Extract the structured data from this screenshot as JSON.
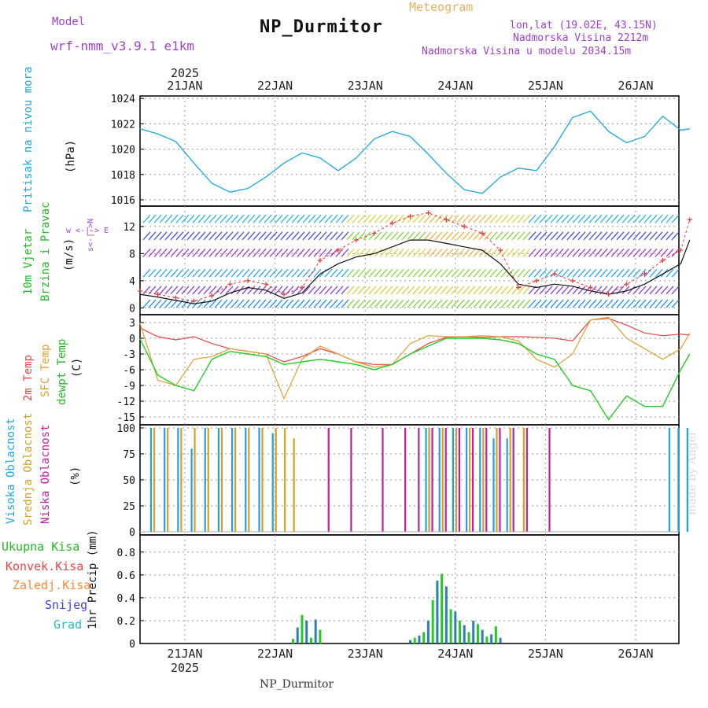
{
  "header": {
    "model_label": "Model",
    "model_value": "wrf-nmm_v3.9.1 e1km",
    "title": "NP_Durmitor",
    "product": "Meteogram",
    "coords": "lon,lat (19.02E, 43.15N)",
    "elevation": "Nadmorska Visina 2212m",
    "model_elevation": "Nadmorska Visina u modelu 2034.15m",
    "footer": "NP_Durmitor",
    "credit": "made by Angel"
  },
  "colors": {
    "pressure": "#1ca8e0",
    "temp2m": "#ee4444",
    "sfc_temp": "#e0a030",
    "dewpoint": "#22cc22",
    "cloud_high": "#20a0e8",
    "cloud_mid": "#d8a020",
    "cloud_low": "#c020a0",
    "precip_total": "#22cc22",
    "precip_conv": "#ee4444",
    "precip_frozen": "#ff8833",
    "precip_snow": "#4040ee",
    "precip_grad": "#20c0c0",
    "wind_speed": "#111111",
    "gust": "#ee3333"
  },
  "chart_data": [
    {
      "type": "line",
      "title": "Pritisak na nivou mora",
      "ylabel": "(hPa)",
      "xlabel": "",
      "ylim": [
        1015.5,
        1024.2
      ],
      "yticks": [
        "1016",
        "1018",
        "1020",
        "1022",
        "1024"
      ],
      "xticks": [
        "21JAN",
        "22JAN",
        "23JAN",
        "24JAN",
        "25JAN",
        "26JAN"
      ],
      "x_top_year": "2025",
      "grid": true,
      "x_days": [
        0,
        0.2,
        0.4,
        0.6,
        0.8,
        1.0,
        1.2,
        1.4,
        1.6,
        1.8,
        2.0,
        2.2,
        2.4,
        2.6,
        2.8,
        3.0,
        3.2,
        3.4,
        3.6,
        3.8,
        4.0,
        4.2,
        4.4,
        4.6,
        4.8,
        5.0,
        5.2,
        5.4,
        5.6,
        5.8,
        6.0,
        6.1
      ],
      "series": [
        {
          "values": [
            1021.6,
            1021.2,
            1020.6,
            1018.9,
            1017.3,
            1016.6,
            1016.9,
            1017.8,
            1018.9,
            1019.7,
            1019.3,
            1018.3,
            1019.3,
            1020.8,
            1021.4,
            1021.0,
            1019.6,
            1018.1,
            1016.8,
            1016.5,
            1017.8,
            1018.5,
            1018.3,
            1020.2,
            1022.5,
            1023.0,
            1021.4,
            1020.5,
            1021.0,
            1022.6,
            1021.5,
            1021.6
          ]
        }
      ]
    },
    {
      "type": "line",
      "title": "10m Vjetar Brzina i Pravac",
      "ylabel": "(m/s)",
      "xlabel": "",
      "ylim": [
        -1,
        15
      ],
      "yticks": [
        "0",
        "4",
        "8",
        "12"
      ],
      "xticks": [
        "21JAN",
        "22JAN",
        "23JAN",
        "24JAN",
        "25JAN",
        "26JAN"
      ],
      "grid": true,
      "legend_text": "w <-|-> E, s<-|->N",
      "x_days": [
        0,
        0.2,
        0.4,
        0.6,
        0.8,
        1.0,
        1.2,
        1.4,
        1.6,
        1.8,
        2.0,
        2.2,
        2.4,
        2.6,
        2.8,
        3.0,
        3.2,
        3.4,
        3.6,
        3.8,
        4.0,
        4.2,
        4.4,
        4.6,
        4.8,
        5.0,
        5.2,
        5.4,
        5.6,
        5.8,
        6.0,
        6.1
      ],
      "series": [
        {
          "name": "speed",
          "values": [
            2.0,
            1.6,
            1.1,
            0.6,
            1.0,
            2.2,
            3.0,
            2.6,
            1.4,
            2.2,
            5.0,
            6.5,
            7.5,
            8.0,
            9.0,
            10.0,
            10.0,
            9.5,
            9.0,
            8.5,
            6.5,
            3.5,
            3.0,
            3.5,
            3.2,
            2.5,
            2.0,
            2.5,
            3.5,
            5.0,
            6.5,
            10.0
          ]
        },
        {
          "name": "gust",
          "values": [
            2.5,
            2.0,
            1.5,
            1.0,
            1.8,
            3.5,
            4.0,
            3.5,
            2.0,
            3.0,
            7.0,
            8.5,
            10.0,
            11.0,
            12.5,
            13.5,
            14.0,
            13.0,
            12.0,
            11.0,
            8.5,
            3.0,
            4.0,
            5.0,
            4.0,
            3.0,
            2.0,
            3.5,
            5.0,
            7.0,
            8.5,
            13.0
          ]
        }
      ]
    },
    {
      "type": "line",
      "title": "2m Temp / SFC Temp / dewpt Temp",
      "ylabel": "(C)",
      "xlabel": "",
      "ylim": [
        -16.5,
        4.5
      ],
      "yticks": [
        "3",
        "0",
        "-3",
        "-6",
        "-9",
        "-12",
        "-15"
      ],
      "xticks": [
        "21JAN",
        "22JAN",
        "23JAN",
        "24JAN",
        "25JAN",
        "26JAN"
      ],
      "grid": true,
      "x_days": [
        0,
        0.2,
        0.4,
        0.6,
        0.8,
        1.0,
        1.2,
        1.4,
        1.6,
        1.8,
        2.0,
        2.2,
        2.4,
        2.6,
        2.8,
        3.0,
        3.2,
        3.4,
        3.6,
        3.8,
        4.0,
        4.2,
        4.4,
        4.6,
        4.8,
        5.0,
        5.2,
        5.4,
        5.6,
        5.8,
        6.0,
        6.1
      ],
      "series": [
        {
          "name": "2m Temp",
          "values": [
            2.0,
            0.3,
            -0.3,
            0.3,
            -1.0,
            -2.0,
            -2.5,
            -3.0,
            -4.5,
            -3.5,
            -2.0,
            -3.0,
            -4.5,
            -5.0,
            -5.0,
            -3.0,
            -1.0,
            0.2,
            0.3,
            0.2,
            0.3,
            0.3,
            0.2,
            0.0,
            -0.5,
            3.5,
            3.8,
            2.5,
            1.0,
            0.5,
            0.8,
            0.6
          ]
        },
        {
          "name": "SFC Temp",
          "values": [
            3.0,
            -8.0,
            -9.0,
            -4.0,
            -3.5,
            -2.0,
            -2.5,
            -3.0,
            -11.5,
            -4.0,
            -1.5,
            -3.0,
            -4.5,
            -5.5,
            -5.0,
            -1.0,
            0.5,
            0.3,
            0.3,
            0.5,
            0.3,
            -0.5,
            -4.0,
            -5.5,
            -3.0,
            3.5,
            4.0,
            0.0,
            -2.0,
            -4.0,
            -2.0,
            1.0
          ]
        },
        {
          "name": "dewpt Temp",
          "values": [
            0.0,
            -7.0,
            -9.0,
            -10.0,
            -4.0,
            -2.5,
            -3.0,
            -3.5,
            -5.0,
            -4.5,
            -4.0,
            -4.5,
            -5.0,
            -6.0,
            -5.0,
            -3.0,
            -1.5,
            0.0,
            0.0,
            0.0,
            -0.3,
            -1.0,
            -3.0,
            -4.0,
            -9.0,
            -10.0,
            -15.5,
            -11.0,
            -13.0,
            -13.0,
            -6.0,
            -3.0
          ]
        }
      ]
    },
    {
      "type": "bar",
      "title": "Visoka Oblacnost / Srednja Oblacnost / Niska Oblacnost",
      "ylabel": "(%)",
      "xlabel": "",
      "ylim": [
        -3,
        103
      ],
      "yticks": [
        "100",
        "75",
        "50",
        "25",
        "0"
      ],
      "xticks": [
        "21JAN",
        "22JAN",
        "23JAN",
        "24JAN",
        "25JAN",
        "26JAN"
      ],
      "grid": true,
      "x_days": [
        0.15,
        0.3,
        0.45,
        0.6,
        0.75,
        0.9,
        1.05,
        1.2,
        1.35,
        1.5,
        1.6,
        1.7,
        2.05,
        2.3,
        2.65,
        2.9,
        3.05,
        3.2,
        3.35,
        3.5,
        3.65,
        3.8,
        3.95,
        4.1,
        4.25,
        4.5,
        4.6,
        5.9,
        6.0,
        6.1
      ],
      "series": [
        {
          "name": "Visoka Oblacnost",
          "values": [
            100,
            100,
            100,
            80,
            100,
            100,
            100,
            100,
            100,
            95,
            0,
            0,
            0,
            0,
            0,
            0,
            0,
            100,
            100,
            100,
            100,
            100,
            90,
            90,
            0,
            0,
            0,
            100,
            100,
            100
          ]
        },
        {
          "name": "Srednja Oblacnost",
          "values": [
            100,
            100,
            100,
            100,
            100,
            100,
            100,
            100,
            100,
            100,
            100,
            90,
            0,
            0,
            0,
            0,
            0,
            100,
            100,
            100,
            100,
            100,
            100,
            100,
            100,
            0,
            0,
            0,
            0,
            0
          ]
        },
        {
          "name": "Niska Oblacnost",
          "values": [
            0,
            0,
            0,
            0,
            0,
            0,
            0,
            0,
            0,
            0,
            0,
            0,
            100,
            100,
            100,
            100,
            100,
            100,
            100,
            100,
            100,
            100,
            100,
            100,
            100,
            100,
            0,
            0,
            0,
            0
          ]
        }
      ]
    },
    {
      "type": "bar",
      "title": "1hr Precip",
      "ylabel": "1hr Precip (mm)",
      "xlabel": "",
      "ylim": [
        0,
        0.95
      ],
      "yticks": [
        "0.8",
        "0.6",
        "0.4",
        "0.2",
        "0"
      ],
      "xticks": [
        "21JAN",
        "22JAN",
        "23JAN",
        "24JAN",
        "25JAN",
        "26JAN"
      ],
      "x_bottom_year": "2025",
      "grid": true,
      "x_days": [
        1.7,
        1.75,
        1.8,
        1.85,
        1.9,
        1.95,
        2.0,
        3.0,
        3.05,
        3.1,
        3.15,
        3.2,
        3.25,
        3.3,
        3.35,
        3.4,
        3.45,
        3.5,
        3.55,
        3.6,
        3.65,
        3.7,
        3.75,
        3.8,
        3.85,
        3.9,
        3.95,
        4.0
      ],
      "series": [
        {
          "name": "Ukupna Kisa",
          "values": [
            0.04,
            0.14,
            0.25,
            0.2,
            0.05,
            0.21,
            0.12,
            0.03,
            0.05,
            0.07,
            0.1,
            0.2,
            0.38,
            0.55,
            0.61,
            0.5,
            0.3,
            0.28,
            0.2,
            0.16,
            0.1,
            0.2,
            0.17,
            0.12,
            0.06,
            0.08,
            0.15,
            0.05
          ]
        },
        {
          "name": "Konvek.Kisa",
          "values": []
        },
        {
          "name": "Zaledj.Kisa",
          "values": []
        },
        {
          "name": "Snijeg",
          "values": []
        },
        {
          "name": "Grad",
          "values": []
        }
      ]
    }
  ],
  "left_labels": {
    "p1_title": "Pritisak na nivou mora",
    "p1_unit": "(hPa)",
    "p2_a": "10m Vjetar",
    "p2_b": "Brzina i Pravac",
    "p2_unit": "(m/s)",
    "p2_dir": "w <-|-> E",
    "p2_dir2": "s<-|->N",
    "p3_a": "2m Temp",
    "p3_b": "SFC Temp",
    "p3_c": "dewpt Temp",
    "p3_unit": "(C)",
    "p4_a": "Visoka Oblacnost",
    "p4_b": "Srednja Oblacnost",
    "p4_c": "Niska Oblacnost",
    "p4_unit": "(%)",
    "p5_l1": "Ukupna Kisa",
    "p5_l2": "Konvek.Kisa",
    "p5_l3": "Zaledj.Kisa",
    "p5_l4": "Snijeg",
    "p5_l5": "Grad",
    "p5_unit": "1hr Precip (mm)"
  }
}
